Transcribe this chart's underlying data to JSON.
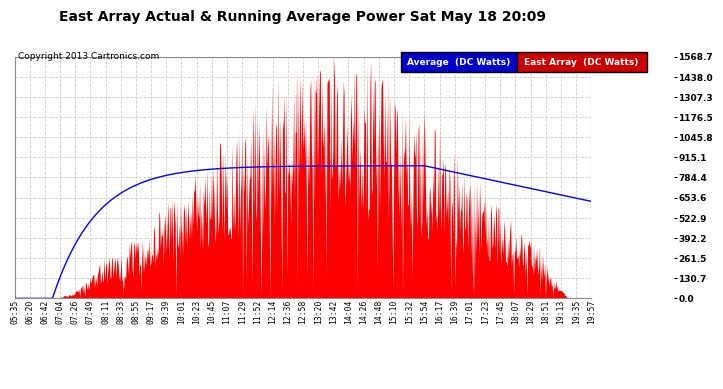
{
  "title": "East Array Actual & Running Average Power Sat May 18 20:09",
  "copyright": "Copyright 2013 Cartronics.com",
  "yticks": [
    0.0,
    130.7,
    261.5,
    392.2,
    522.9,
    653.6,
    784.4,
    915.1,
    1045.8,
    1176.5,
    1307.3,
    1438.0,
    1568.7
  ],
  "ymax": 1568.7,
  "ymin": 0.0,
  "bg_color": "#ffffff",
  "plot_bg_color": "#ffffff",
  "grid_color": "#cccccc",
  "fill_color": "#ff0000",
  "avg_color": "#0000ff",
  "legend_avg_bg": "#0000cc",
  "legend_east_bg": "#cc0000",
  "xtick_labels": [
    "05:35",
    "06:20",
    "06:42",
    "07:04",
    "07:26",
    "07:49",
    "08:11",
    "08:33",
    "08:55",
    "09:17",
    "09:39",
    "10:01",
    "10:23",
    "10:45",
    "11:07",
    "11:29",
    "11:52",
    "12:14",
    "12:36",
    "12:58",
    "13:20",
    "13:42",
    "14:04",
    "14:26",
    "14:48",
    "15:10",
    "15:32",
    "15:54",
    "16:17",
    "16:39",
    "17:01",
    "17:23",
    "17:45",
    "18:07",
    "18:29",
    "18:51",
    "19:13",
    "19:35",
    "19:57"
  ]
}
